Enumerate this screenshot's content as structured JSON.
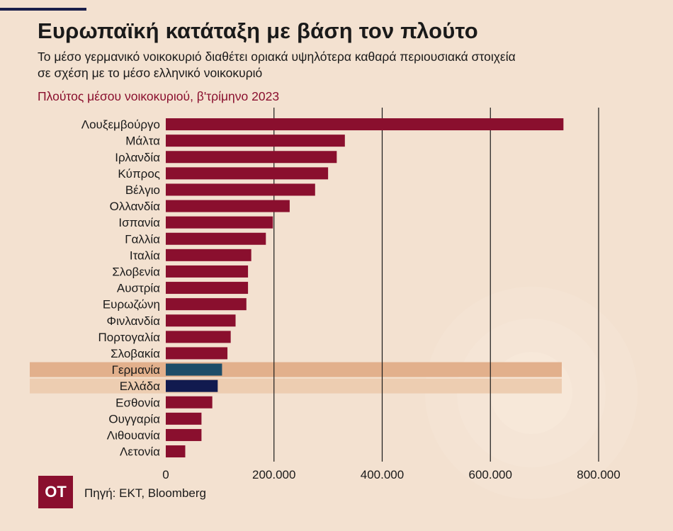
{
  "header": {
    "title": "Ευρωπαϊκή κατάταξη με βάση τον πλούτο",
    "subtitle_line1": "Το μέσο γερμανικό νοικοκυριό διαθέτει οριακά υψηλότερα καθαρά περιουσιακά στοιχεία",
    "subtitle_line2": "σε σχέση με το μέσο ελληνικό νοικοκυριό",
    "chart_subtitle": "Πλούτος μέσου νοικοκυριού, β'τρίμηνο 2023"
  },
  "footer": {
    "logo_text": "ΟΤ",
    "source": "Πηγή: ΕΚΤ, Bloomberg"
  },
  "colors": {
    "background": "#f3e1d0",
    "bar_default": "#8a0f2e",
    "bar_germany": "#1e4d68",
    "bar_greece": "#111a4f",
    "highlight_germany": "#e2b08c",
    "highlight_greece": "#edcdb1",
    "gridline": "#1a1a1a"
  },
  "chart_data": {
    "type": "bar",
    "orientation": "horizontal",
    "title": "Ευρωπαϊκή κατάταξη με βάση τον πλούτο",
    "subtitle": "Πλούτος μέσου νοικοκυριού, β'τρίμηνο 2023",
    "categories": [
      "Λουξεμβούργο",
      "Μάλτα",
      "Ιρλανδία",
      "Κύπρος",
      "Βέλγιο",
      "Ολλανδία",
      "Ισπανία",
      "Γαλλία",
      "Ιταλία",
      "Σλοβενία",
      "Αυστρία",
      "Ευρωζώνη",
      "Φινλανδία",
      "Πορτογαλία",
      "Σλοβακία",
      "Γερμανία",
      "Ελλάδα",
      "Εσθονία",
      "Ουγγαρία",
      "Λιθουανία",
      "Λετονία"
    ],
    "values": [
      735000,
      331000,
      316000,
      300000,
      276000,
      229000,
      198000,
      185000,
      158000,
      152000,
      152000,
      149000,
      129000,
      120000,
      114000,
      104000,
      96000,
      86000,
      66000,
      66000,
      36000
    ],
    "highlighted": [
      "Γερμανία",
      "Ελλάδα"
    ],
    "xlim": [
      0,
      800000
    ],
    "x_ticks": [
      0,
      200000,
      400000,
      600000,
      800000
    ],
    "x_tick_labels": [
      "0",
      "200.000",
      "400.000",
      "600.000",
      "800.000"
    ],
    "grid": true,
    "xlabel": "",
    "ylabel": ""
  }
}
